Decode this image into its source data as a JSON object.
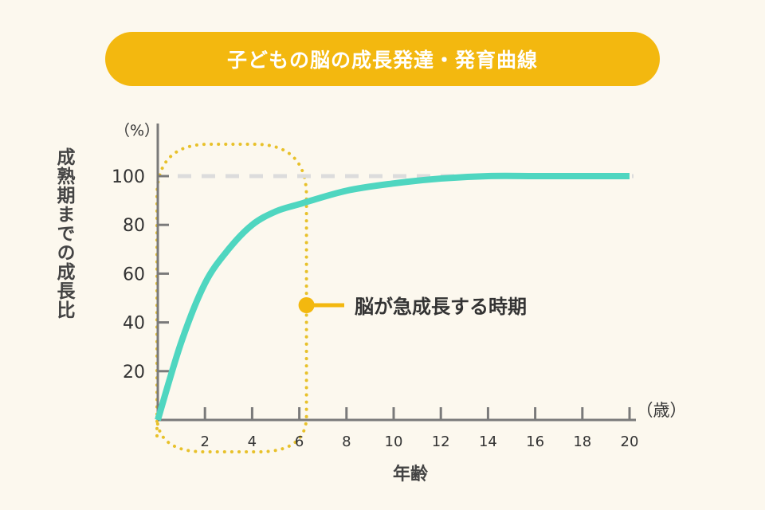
{
  "chart_data": {
    "type": "line",
    "title": "子どもの脳の成長発達・発育曲線",
    "xlabel": "年齢",
    "ylabel": "成熟期までの成長比",
    "x_unit": "（歳）",
    "y_unit": "（%）",
    "xlim": [
      0,
      20
    ],
    "ylim": [
      0,
      100
    ],
    "x_ticks": [
      2,
      4,
      6,
      8,
      10,
      12,
      14,
      16,
      18,
      20
    ],
    "y_ticks": [
      20,
      40,
      60,
      80,
      100
    ],
    "grid": false,
    "reference_line": {
      "y": 100,
      "style": "dashed",
      "color": "#dcdcdc"
    },
    "series": [
      {
        "color": "#4fd6c0",
        "x": [
          0,
          1,
          2,
          3,
          4,
          5,
          6,
          8,
          10,
          12,
          14,
          16,
          18,
          20
        ],
        "y": [
          0,
          32,
          56,
          70,
          80,
          85.5,
          88.5,
          94,
          97,
          99,
          100,
          100,
          100,
          100
        ]
      }
    ],
    "annotation": {
      "text": "脳が急成長する時期",
      "x_range": [
        0,
        6
      ],
      "color": "#f3b80f"
    }
  },
  "colors": {
    "background": "#fcf8ee",
    "accent": "#f3b80f",
    "axis": "#7a7a7a",
    "text": "#333333"
  }
}
